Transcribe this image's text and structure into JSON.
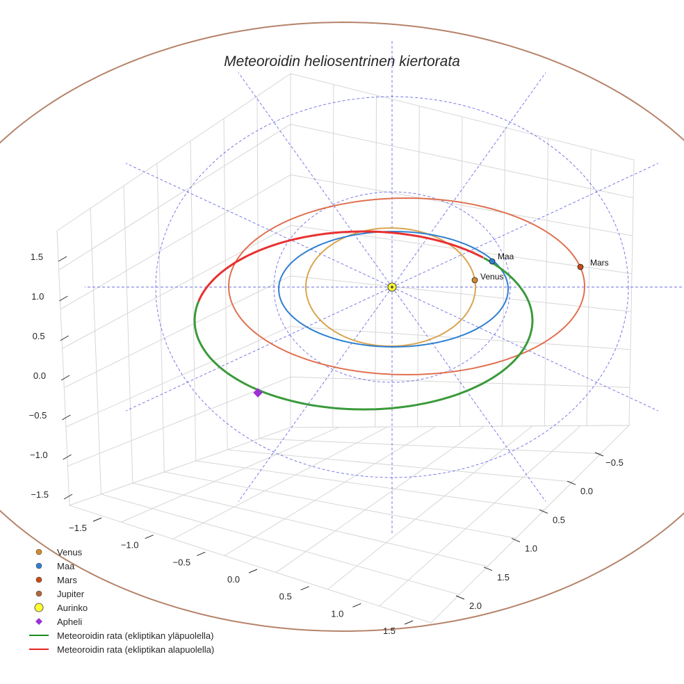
{
  "chart_data": {
    "type": "line3d",
    "title": "Meteoroidin heliosentrinen kiertorata",
    "xlabel": "",
    "ylabel": "",
    "zlabel": "",
    "axes": {
      "x_ticks": [
        "−1.5",
        "−1.0",
        "−0.5",
        "0.0",
        "0.5",
        "1.0",
        "1.5"
      ],
      "y_ticks": [
        "−0.5",
        "0.0",
        "0.5",
        "1.0",
        "1.5",
        "2.0"
      ],
      "z_ticks": [
        "1.5",
        "1.0",
        "0.5",
        "0.0",
        "−0.5",
        "−1.0",
        "−1.5"
      ],
      "xlim": [
        -1.6,
        1.6
      ],
      "ylim": [
        -0.8,
        2.2
      ],
      "zlim": [
        -1.6,
        1.6
      ]
    },
    "series": [
      {
        "name": "Venus orbit",
        "type": "circle",
        "radius_au": 0.72,
        "color": "#d9a44e"
      },
      {
        "name": "Maa orbit",
        "type": "circle",
        "radius_au": 1.0,
        "color": "#2f7fd1"
      },
      {
        "name": "Mars orbit",
        "type": "circle",
        "radius_au": 1.52,
        "color": "#e07050"
      },
      {
        "name": "Jupiter orbit",
        "type": "circle",
        "radius_au": 5.2,
        "color": "#b5836a"
      },
      {
        "name": "Meteoroidin rata (ekliptikan yläpuolella)",
        "color": "#3a9a3a"
      },
      {
        "name": "Meteoroidin rata (ekliptikan alapuolella)",
        "color": "#e83030"
      }
    ],
    "points": [
      {
        "name": "Venus",
        "label": "Venus",
        "color": "#d4892a"
      },
      {
        "name": "Maa",
        "label": "Maa",
        "color": "#2f7fd1"
      },
      {
        "name": "Mars",
        "label": "Mars",
        "color": "#c84a18"
      },
      {
        "name": "Aurinko",
        "label": "",
        "color": "#ffff33"
      },
      {
        "name": "Apheli",
        "label": "",
        "color": "#9b30d6"
      }
    ],
    "legend": {
      "placement": "bottom-left",
      "entries": [
        {
          "label": "Venus",
          "marker": "circle",
          "color": "#d4892a"
        },
        {
          "label": "Maa",
          "marker": "circle",
          "color": "#2f7fd1"
        },
        {
          "label": "Mars",
          "marker": "circle",
          "color": "#c84a18"
        },
        {
          "label": "Jupiter",
          "marker": "circle",
          "color": "#b5653a"
        },
        {
          "label": "Aurinko",
          "marker": "circle-large",
          "color": "#ffff33"
        },
        {
          "label": "Apheli",
          "marker": "diamond",
          "color": "#9b30d6"
        },
        {
          "label": "Meteoroidin rata (ekliptikan yläpuolella)",
          "marker": "line",
          "color": "#1a8f1a"
        },
        {
          "label": "Meteoroidin rata (ekliptikan alapuolella)",
          "marker": "line",
          "color": "#e82020"
        }
      ]
    },
    "reference_grid": {
      "rings_au": [
        1.0,
        2.0
      ],
      "radial_lines": 12,
      "color": "#3a3ae0",
      "style": "dashed"
    },
    "grid": true
  }
}
